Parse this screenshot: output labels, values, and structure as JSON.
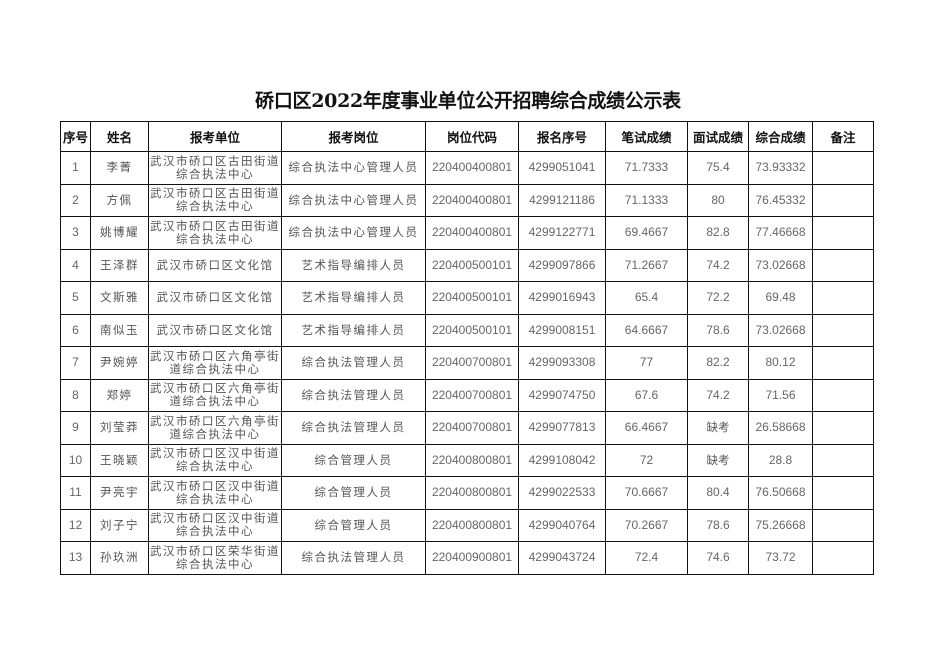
{
  "title": "硚口区2022年度事业单位公开招聘综合成绩公示表",
  "columns": [
    "序号",
    "姓名",
    "报考单位",
    "报考岗位",
    "岗位代码",
    "报名序号",
    "笔试成绩",
    "面试成绩",
    "综合成绩",
    "备注"
  ],
  "rows": [
    {
      "no": "1",
      "name": "李菁",
      "unit": "武汉市硚口区古田街道综合执法中心",
      "post": "综合执法中心管理人员",
      "code": "220400400801",
      "reg": "4299051041",
      "written": "71.7333",
      "interview": "75.4",
      "total": "73.93332",
      "note": ""
    },
    {
      "no": "2",
      "name": "方佩",
      "unit": "武汉市硚口区古田街道综合执法中心",
      "post": "综合执法中心管理人员",
      "code": "220400400801",
      "reg": "4299121186",
      "written": "71.1333",
      "interview": "80",
      "total": "76.45332",
      "note": ""
    },
    {
      "no": "3",
      "name": "姚博耀",
      "unit": "武汉市硚口区古田街道综合执法中心",
      "post": "综合执法中心管理人员",
      "code": "220400400801",
      "reg": "4299122771",
      "written": "69.4667",
      "interview": "82.8",
      "total": "77.46668",
      "note": ""
    },
    {
      "no": "4",
      "name": "王泽群",
      "unit": "武汉市硚口区文化馆",
      "post": "艺术指导编排人员",
      "code": "220400500101",
      "reg": "4299097866",
      "written": "71.2667",
      "interview": "74.2",
      "total": "73.02668",
      "note": ""
    },
    {
      "no": "5",
      "name": "文斯雅",
      "unit": "武汉市硚口区文化馆",
      "post": "艺术指导编排人员",
      "code": "220400500101",
      "reg": "4299016943",
      "written": "65.4",
      "interview": "72.2",
      "total": "69.48",
      "note": ""
    },
    {
      "no": "6",
      "name": "南似玉",
      "unit": "武汉市硚口区文化馆",
      "post": "艺术指导编排人员",
      "code": "220400500101",
      "reg": "4299008151",
      "written": "64.6667",
      "interview": "78.6",
      "total": "73.02668",
      "note": ""
    },
    {
      "no": "7",
      "name": "尹婉婷",
      "unit": "武汉市硚口区六角亭街道综合执法中心",
      "post": "综合执法管理人员",
      "code": "220400700801",
      "reg": "4299093308",
      "written": "77",
      "interview": "82.2",
      "total": "80.12",
      "note": ""
    },
    {
      "no": "8",
      "name": "郑婷",
      "unit": "武汉市硚口区六角亭街道综合执法中心",
      "post": "综合执法管理人员",
      "code": "220400700801",
      "reg": "4299074750",
      "written": "67.6",
      "interview": "74.2",
      "total": "71.56",
      "note": ""
    },
    {
      "no": "9",
      "name": "刘莹莽",
      "unit": "武汉市硚口区六角亭街道综合执法中心",
      "post": "综合执法管理人员",
      "code": "220400700801",
      "reg": "4299077813",
      "written": "66.4667",
      "interview": "缺考",
      "total": "26.58668",
      "note": ""
    },
    {
      "no": "10",
      "name": "王晓颖",
      "unit": "武汉市硚口区汉中街道综合执法中心",
      "post": "综合管理人员",
      "code": "220400800801",
      "reg": "4299108042",
      "written": "72",
      "interview": "缺考",
      "total": "28.8",
      "note": ""
    },
    {
      "no": "11",
      "name": "尹亮宇",
      "unit": "武汉市硚口区汉中街道综合执法中心",
      "post": "综合管理人员",
      "code": "220400800801",
      "reg": "4299022533",
      "written": "70.6667",
      "interview": "80.4",
      "total": "76.50668",
      "note": ""
    },
    {
      "no": "12",
      "name": "刘子宁",
      "unit": "武汉市硚口区汉中街道综合执法中心",
      "post": "综合管理人员",
      "code": "220400800801",
      "reg": "4299040764",
      "written": "70.2667",
      "interview": "78.6",
      "total": "75.26668",
      "note": ""
    },
    {
      "no": "13",
      "name": "孙玖洲",
      "unit": "武汉市硚口区荣华街道综合执法中心",
      "post": "综合执法管理人员",
      "code": "220400900801",
      "reg": "4299043724",
      "written": "72.4",
      "interview": "74.6",
      "total": "73.72",
      "note": ""
    }
  ]
}
